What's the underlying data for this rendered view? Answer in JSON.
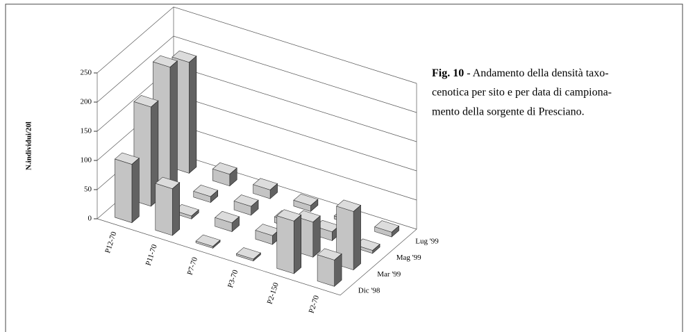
{
  "chart_data": {
    "type": "bar3d",
    "y_label": "N.individui/20l",
    "caption_label": "Fig. 10",
    "caption_lines": [
      "- Andamento della densità taxo-",
      "cenotica per sito e per data di campiona-",
      "mento della sorgente di Presciano."
    ],
    "categories": [
      "P12-70",
      "P11-70",
      "P7-70",
      "P3-70",
      "P2-150",
      "P2-70"
    ],
    "series": [
      {
        "name": "Dic '98",
        "values": [
          100,
          80,
          3,
          3,
          90,
          45
        ]
      },
      {
        "name": "Mar '99",
        "values": [
          170,
          5,
          15,
          15,
          60,
          100
        ]
      },
      {
        "name": "Mag '99",
        "values": [
          210,
          10,
          15,
          10,
          15,
          5
        ]
      },
      {
        "name": "Lug '99",
        "values": [
          190,
          20,
          15,
          10,
          5,
          8
        ]
      }
    ],
    "color": "#c4c4c4",
    "ylim": [
      0,
      250
    ],
    "yticks": [
      0,
      50,
      100,
      150,
      200,
      250
    ],
    "grid": true
  }
}
